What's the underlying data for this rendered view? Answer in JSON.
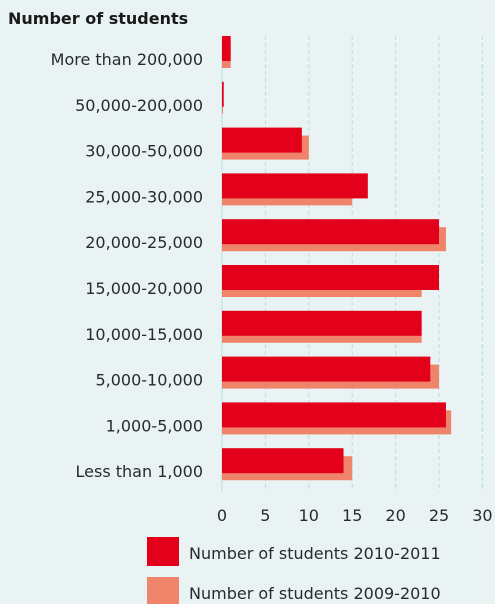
{
  "chart_data": {
    "type": "bar",
    "orientation": "horizontal",
    "title": "Number of students",
    "categories": [
      "More than 200,000",
      "50,000-200,000",
      "30,000-50,000",
      "25,000-30,000",
      "20,000-25,000",
      "15,000-20,000",
      "10,000-15,000",
      "5,000-10,000",
      "1,000-5,000",
      "Less than 1,000"
    ],
    "series": [
      {
        "name": "Number of students 2010-2011",
        "color": "#e2001a",
        "values": [
          1,
          0.2,
          9.2,
          16.8,
          25,
          25,
          23,
          24,
          25.8,
          14
        ]
      },
      {
        "name": "Number of students 2009-2010",
        "color": "#f0846a",
        "values": [
          1,
          0.1,
          10,
          15,
          25.8,
          23,
          23,
          25,
          26.4,
          15
        ]
      }
    ],
    "xlim": [
      0,
      30
    ],
    "xticks": [
      "0",
      "5",
      "10",
      "15",
      "20",
      "25",
      "30"
    ],
    "grid": true,
    "legend_position": "bottom-right"
  }
}
